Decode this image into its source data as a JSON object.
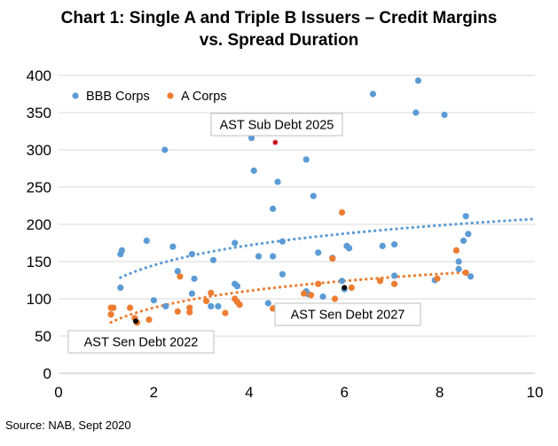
{
  "title_line1": "Chart 1: Single A and Triple B Issuers – Credit Margins",
  "title_line2": "vs. Spread Duration",
  "source": "Source: NAB, Sept 2020",
  "colors": {
    "bbb": "#5b9bd5",
    "a": "#ed7d31",
    "highlight_sub": "#c00000",
    "highlight_sen": "#000000",
    "grid": "#d9d9d9"
  },
  "chart_data": {
    "type": "scatter",
    "title": "Chart 1: Single A and Triple B Issuers – Credit Margins vs. Spread Duration",
    "xlabel": "",
    "ylabel": "",
    "xlim": [
      0,
      10
    ],
    "ylim": [
      0,
      400
    ],
    "x_ticks": [
      "0",
      "2",
      "4",
      "6",
      "8",
      "10"
    ],
    "y_ticks": [
      "0",
      "50",
      "100",
      "150",
      "200",
      "250",
      "300",
      "350",
      "400"
    ],
    "grid": true,
    "legend_position": "top-left",
    "series": [
      {
        "name": "BBB Corps",
        "trendline": "logarithmic",
        "points": [
          [
            1.3,
            160
          ],
          [
            1.33,
            165
          ],
          [
            1.3,
            115
          ],
          [
            1.85,
            178
          ],
          [
            2.0,
            98
          ],
          [
            2.23,
            300
          ],
          [
            2.4,
            170
          ],
          [
            2.5,
            137
          ],
          [
            2.8,
            160
          ],
          [
            2.85,
            127
          ],
          [
            2.8,
            107
          ],
          [
            2.25,
            90
          ],
          [
            3.2,
            90
          ],
          [
            3.25,
            152
          ],
          [
            3.35,
            90
          ],
          [
            3.7,
            120
          ],
          [
            3.75,
            117
          ],
          [
            4.05,
            316
          ],
          [
            4.1,
            272
          ],
          [
            4.2,
            157
          ],
          [
            4.4,
            94
          ],
          [
            4.5,
            221
          ],
          [
            4.6,
            257
          ],
          [
            4.5,
            157
          ],
          [
            4.7,
            133
          ],
          [
            4.7,
            177
          ],
          [
            5.2,
            287
          ],
          [
            5.35,
            238
          ],
          [
            5.45,
            162
          ],
          [
            5.2,
            110
          ],
          [
            5.25,
            106
          ],
          [
            5.55,
            103
          ],
          [
            5.75,
            155
          ],
          [
            5.95,
            124
          ],
          [
            6.05,
            171
          ],
          [
            6.1,
            168
          ],
          [
            6.6,
            375
          ],
          [
            6.8,
            171
          ],
          [
            7.05,
            173
          ],
          [
            7.05,
            131
          ],
          [
            7.55,
            393
          ],
          [
            7.5,
            350
          ],
          [
            8.1,
            347
          ],
          [
            7.9,
            125
          ],
          [
            8.4,
            150
          ],
          [
            8.4,
            140
          ],
          [
            8.5,
            178
          ],
          [
            8.55,
            211
          ],
          [
            8.6,
            187
          ],
          [
            8.65,
            130
          ],
          [
            3.7,
            175
          ],
          [
            6.0,
            113
          ]
        ]
      },
      {
        "name": "A Corps",
        "trendline": "logarithmic",
        "points": [
          [
            1.1,
            88
          ],
          [
            1.1,
            79
          ],
          [
            1.15,
            88
          ],
          [
            1.5,
            88
          ],
          [
            1.6,
            74
          ],
          [
            1.65,
            68
          ],
          [
            1.9,
            72
          ],
          [
            2.5,
            83
          ],
          [
            2.55,
            130
          ],
          [
            2.75,
            88
          ],
          [
            2.75,
            82
          ],
          [
            3.1,
            97
          ],
          [
            3.2,
            108
          ],
          [
            3.5,
            81
          ],
          [
            3.7,
            100
          ],
          [
            3.75,
            96
          ],
          [
            3.8,
            92
          ],
          [
            4.5,
            87
          ],
          [
            5.15,
            107
          ],
          [
            5.3,
            105
          ],
          [
            5.45,
            120
          ],
          [
            5.75,
            154
          ],
          [
            5.8,
            100
          ],
          [
            5.95,
            216
          ],
          [
            6.15,
            115
          ],
          [
            6.75,
            124
          ],
          [
            7.05,
            120
          ],
          [
            7.95,
            127
          ],
          [
            8.35,
            165
          ],
          [
            8.55,
            135
          ]
        ]
      }
    ],
    "annotations": [
      {
        "text": "AST Sub Debt 2025",
        "x": 4.55,
        "y": 310
      },
      {
        "text": "AST Sen Debt 2027",
        "x": 6.0,
        "y": 115
      },
      {
        "text": "AST Sen Debt 2022",
        "x": 1.62,
        "y": 70
      }
    ]
  }
}
